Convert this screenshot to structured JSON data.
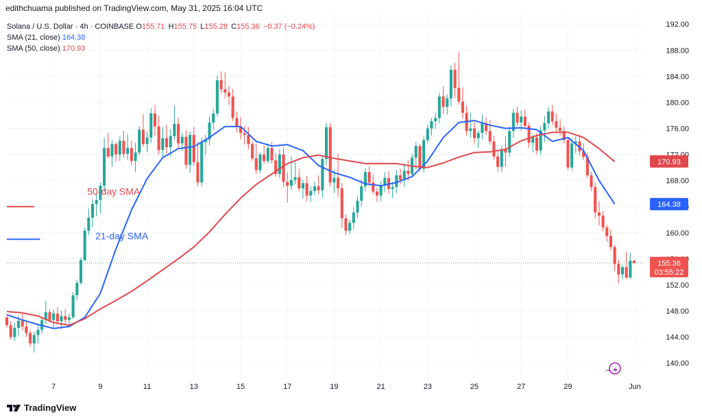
{
  "publisher": "edithchuama published on TradingView.com, May 31, 2025 16:04 UTC",
  "legend": {
    "symbol": "Solana / U.S. Dollar · 4h · COINBASE",
    "ohlc": [
      {
        "label": "O",
        "value": "155.71"
      },
      {
        "label": "H",
        "value": "155.75"
      },
      {
        "label": "L",
        "value": "155.28"
      },
      {
        "label": "C",
        "value": "155.36"
      }
    ],
    "change": "−0.37 (−0.24%)",
    "sma21": {
      "name": "SMA (21, close)",
      "value": "164.38"
    },
    "sma50": {
      "name": "SMA (50, close)",
      "value": "170.93"
    }
  },
  "footer": {
    "brand": "TradingView"
  },
  "colors": {
    "up": "#26a69a",
    "down": "#ef5350",
    "sma21": "#2962ff",
    "sma50": "#e0474c",
    "grid": "#f0f3fa"
  },
  "chart_data": {
    "type": "candlestick",
    "title": "Solana / U.S. Dollar · 4h · COINBASE",
    "y_ticks": [
      140,
      144,
      148,
      152,
      156,
      160,
      164,
      168,
      172,
      176,
      180,
      184,
      188,
      192
    ],
    "y_tick_labels": [
      "140.00",
      "144.00",
      "148.00",
      "152.00",
      "156.00",
      "160.00",
      "164.00",
      "168.00",
      "172.00",
      "176.00",
      "180.00",
      "184.00",
      "188.00",
      "192.00"
    ],
    "ylim": [
      137.6,
      193.6
    ],
    "x_range": [
      0,
      158
    ],
    "x_ticks": [
      {
        "x": 12,
        "label": "7"
      },
      {
        "x": 24,
        "label": "9"
      },
      {
        "x": 36,
        "label": "11"
      },
      {
        "x": 48,
        "label": "13"
      },
      {
        "x": 60,
        "label": "15"
      },
      {
        "x": 72,
        "label": "17"
      },
      {
        "x": 84,
        "label": "19"
      },
      {
        "x": 96,
        "label": "21"
      },
      {
        "x": 108,
        "label": "23"
      },
      {
        "x": 120,
        "label": "25"
      },
      {
        "x": 132,
        "label": "27"
      },
      {
        "x": 144,
        "label": "29"
      },
      {
        "x": 160,
        "label": "Jun"
      }
    ],
    "candles": [
      [
        147.0,
        147.4,
        145.4,
        145.8
      ],
      [
        145.8,
        146.4,
        143.6,
        144.0
      ],
      [
        144.0,
        146.2,
        143.4,
        145.4
      ],
      [
        145.4,
        147.3,
        144.2,
        146.5
      ],
      [
        146.5,
        147.5,
        145.0,
        145.6
      ],
      [
        145.6,
        146.5,
        144.0,
        144.6
      ],
      [
        144.6,
        145.1,
        142.5,
        143.0
      ],
      [
        143.0,
        144.8,
        141.6,
        144.3
      ],
      [
        144.3,
        145.8,
        143.0,
        145.1
      ],
      [
        145.1,
        147.1,
        144.5,
        146.6
      ],
      [
        146.6,
        149.5,
        146.0,
        147.8
      ],
      [
        147.8,
        148.3,
        146.2,
        146.6
      ],
      [
        146.6,
        148.2,
        145.4,
        147.6
      ],
      [
        147.6,
        148.6,
        146.1,
        146.4
      ],
      [
        146.4,
        148.0,
        145.2,
        147.2
      ],
      [
        147.2,
        148.3,
        146.0,
        146.6
      ],
      [
        146.6,
        147.6,
        145.6,
        147.0
      ],
      [
        147.0,
        150.9,
        146.8,
        150.4
      ],
      [
        150.4,
        152.8,
        149.7,
        152.3
      ],
      [
        152.3,
        156.2,
        152.0,
        155.8
      ],
      [
        155.8,
        160.8,
        155.6,
        160.3
      ],
      [
        160.3,
        163.7,
        159.6,
        162.3
      ],
      [
        162.3,
        165.1,
        160.9,
        164.4
      ],
      [
        164.4,
        166.1,
        162.5,
        165.0
      ],
      [
        165.0,
        167.7,
        163.0,
        167.2
      ],
      [
        167.2,
        174.6,
        166.3,
        173.0
      ],
      [
        173.0,
        175.3,
        171.4,
        171.7
      ],
      [
        171.7,
        174.2,
        170.1,
        173.6
      ],
      [
        173.6,
        173.9,
        170.9,
        172.0
      ],
      [
        172.0,
        174.8,
        171.0,
        174.1
      ],
      [
        174.1,
        175.6,
        171.5,
        172.1
      ],
      [
        172.1,
        175.1,
        171.2,
        173.0
      ],
      [
        173.0,
        174.1,
        170.3,
        171.0
      ],
      [
        171.0,
        173.8,
        169.3,
        172.3
      ],
      [
        172.3,
        176.3,
        171.8,
        175.8
      ],
      [
        175.8,
        178.2,
        173.2,
        173.6
      ],
      [
        173.6,
        175.5,
        172.4,
        174.6
      ],
      [
        174.6,
        179.1,
        173.8,
        178.3
      ],
      [
        178.3,
        179.6,
        174.9,
        176.3
      ],
      [
        176.3,
        177.9,
        172.0,
        172.7
      ],
      [
        172.7,
        176.2,
        171.6,
        174.5
      ],
      [
        174.5,
        176.5,
        172.1,
        173.1
      ],
      [
        173.1,
        175.9,
        171.7,
        174.8
      ],
      [
        174.8,
        179.5,
        174.2,
        176.7
      ],
      [
        176.7,
        177.6,
        173.0,
        173.7
      ],
      [
        173.7,
        175.3,
        172.6,
        174.7
      ],
      [
        174.7,
        175.8,
        169.8,
        170.4
      ],
      [
        170.4,
        175.5,
        169.2,
        175.0
      ],
      [
        175.0,
        176.2,
        170.3,
        170.8
      ],
      [
        170.8,
        174.0,
        167.1,
        167.7
      ],
      [
        167.7,
        174.6,
        167.1,
        173.9
      ],
      [
        173.9,
        175.0,
        171.9,
        174.3
      ],
      [
        174.3,
        177.8,
        173.4,
        176.9
      ],
      [
        176.9,
        179.0,
        175.8,
        178.3
      ],
      [
        178.3,
        184.1,
        177.8,
        183.4
      ],
      [
        183.4,
        184.8,
        181.4,
        182.0
      ],
      [
        182.0,
        184.6,
        180.6,
        181.5
      ],
      [
        181.5,
        182.5,
        179.6,
        180.9
      ],
      [
        180.9,
        182.1,
        177.1,
        177.6
      ],
      [
        177.6,
        178.6,
        175.4,
        176.2
      ],
      [
        176.2,
        177.7,
        174.3,
        175.3
      ],
      [
        175.3,
        176.4,
        173.5,
        175.0
      ],
      [
        175.0,
        176.2,
        172.8,
        173.6
      ],
      [
        173.6,
        174.0,
        171.0,
        171.4
      ],
      [
        171.4,
        173.7,
        169.0,
        169.6
      ],
      [
        169.6,
        172.3,
        169.1,
        172.0
      ],
      [
        172.0,
        173.4,
        170.6,
        171.0
      ],
      [
        171.0,
        173.7,
        170.6,
        173.0
      ],
      [
        173.0,
        173.9,
        170.6,
        171.1
      ],
      [
        171.1,
        172.2,
        168.6,
        169.0
      ],
      [
        169.0,
        172.8,
        168.4,
        172.0
      ],
      [
        172.0,
        173.1,
        167.0,
        167.8
      ],
      [
        167.8,
        169.3,
        164.6,
        167.2
      ],
      [
        167.2,
        171.7,
        166.6,
        168.1
      ],
      [
        168.1,
        170.9,
        167.4,
        168.5
      ],
      [
        168.5,
        169.8,
        166.3,
        166.8
      ],
      [
        166.8,
        168.1,
        165.2,
        167.6
      ],
      [
        167.6,
        168.7,
        164.8,
        165.7
      ],
      [
        165.7,
        167.1,
        164.7,
        166.4
      ],
      [
        166.4,
        167.8,
        165.8,
        167.1
      ],
      [
        167.1,
        168.8,
        165.9,
        166.5
      ],
      [
        166.5,
        171.7,
        165.4,
        171.3
      ],
      [
        171.3,
        176.8,
        170.3,
        176.2
      ],
      [
        176.2,
        176.8,
        167.1,
        167.7
      ],
      [
        167.7,
        169.6,
        166.1,
        168.4
      ],
      [
        168.4,
        172.1,
        165.5,
        166.8
      ],
      [
        166.8,
        167.6,
        160.8,
        162.2
      ],
      [
        162.2,
        162.8,
        159.6,
        160.3
      ],
      [
        160.3,
        162.0,
        159.8,
        161.5
      ],
      [
        161.5,
        163.9,
        160.5,
        163.1
      ],
      [
        163.1,
        165.6,
        162.2,
        164.9
      ],
      [
        164.9,
        168.2,
        164.0,
        167.1
      ],
      [
        167.1,
        169.8,
        166.3,
        169.3
      ],
      [
        169.3,
        170.2,
        167.1,
        167.7
      ],
      [
        167.7,
        168.9,
        165.9,
        166.3
      ],
      [
        166.3,
        166.9,
        164.7,
        165.7
      ],
      [
        165.7,
        167.9,
        164.8,
        167.2
      ],
      [
        167.2,
        169.3,
        166.2,
        168.4
      ],
      [
        168.4,
        169.5,
        166.0,
        166.7
      ],
      [
        166.7,
        167.8,
        165.3,
        167.0
      ],
      [
        167.0,
        169.6,
        166.1,
        168.8
      ],
      [
        168.8,
        169.8,
        167.4,
        168.1
      ],
      [
        168.1,
        170.6,
        167.0,
        169.5
      ],
      [
        169.5,
        171.1,
        168.0,
        169.0
      ],
      [
        169.0,
        172.1,
        168.5,
        171.5
      ],
      [
        171.5,
        173.9,
        169.7,
        173.3
      ],
      [
        173.3,
        173.6,
        169.4,
        169.8
      ],
      [
        169.8,
        174.8,
        169.2,
        174.2
      ],
      [
        174.2,
        176.6,
        173.8,
        176.0
      ],
      [
        176.0,
        177.6,
        174.9,
        177.1
      ],
      [
        177.1,
        178.4,
        175.9,
        177.6
      ],
      [
        177.6,
        181.5,
        176.8,
        180.9
      ],
      [
        180.9,
        182.5,
        178.2,
        179.3
      ],
      [
        179.3,
        181.2,
        178.1,
        180.6
      ],
      [
        180.6,
        185.7,
        179.4,
        185.0
      ],
      [
        185.0,
        186.1,
        180.7,
        182.2
      ],
      [
        182.2,
        187.7,
        179.6,
        180.1
      ],
      [
        180.1,
        182.3,
        177.5,
        178.4
      ],
      [
        178.4,
        179.5,
        174.9,
        175.6
      ],
      [
        175.6,
        178.4,
        174.6,
        176.0
      ],
      [
        176.0,
        177.0,
        173.7,
        174.5
      ],
      [
        174.5,
        175.7,
        173.0,
        175.3
      ],
      [
        175.3,
        178.1,
        174.3,
        176.8
      ],
      [
        176.8,
        177.7,
        175.0,
        175.6
      ],
      [
        175.6,
        177.3,
        173.5,
        174.0
      ],
      [
        174.0,
        174.9,
        171.2,
        171.7
      ],
      [
        171.7,
        172.6,
        169.4,
        170.1
      ],
      [
        170.1,
        173.4,
        169.3,
        172.8
      ],
      [
        172.8,
        174.8,
        170.1,
        172.3
      ],
      [
        172.3,
        176.3,
        171.6,
        175.6
      ],
      [
        175.6,
        179.0,
        174.5,
        178.4
      ],
      [
        178.4,
        179.3,
        176.4,
        176.9
      ],
      [
        176.9,
        178.8,
        175.6,
        177.8
      ],
      [
        177.8,
        178.9,
        175.9,
        176.4
      ],
      [
        176.4,
        176.9,
        173.0,
        173.8
      ],
      [
        173.8,
        175.1,
        172.3,
        174.6
      ],
      [
        174.6,
        175.3,
        172.0,
        172.6
      ],
      [
        172.6,
        176.4,
        171.9,
        175.7
      ],
      [
        175.7,
        177.9,
        173.9,
        176.8
      ],
      [
        176.8,
        179.3,
        176.0,
        178.6
      ],
      [
        178.6,
        179.6,
        176.5,
        177.1
      ],
      [
        177.1,
        178.3,
        175.5,
        176.1
      ],
      [
        176.1,
        177.4,
        174.9,
        175.6
      ],
      [
        175.6,
        176.3,
        173.7,
        174.2
      ],
      [
        174.2,
        174.6,
        169.6,
        170.0
      ],
      [
        170.0,
        174.5,
        169.5,
        173.7
      ],
      [
        173.7,
        174.8,
        172.2,
        174.0
      ],
      [
        174.0,
        175.0,
        171.8,
        172.5
      ],
      [
        172.5,
        173.7,
        171.1,
        171.6
      ],
      [
        171.6,
        172.3,
        168.4,
        168.8
      ],
      [
        168.8,
        169.3,
        166.4,
        167.0
      ],
      [
        167.0,
        167.7,
        162.2,
        163.1
      ],
      [
        163.1,
        164.8,
        161.1,
        162.6
      ],
      [
        162.6,
        163.3,
        160.2,
        160.8
      ],
      [
        160.8,
        161.2,
        158.6,
        159.5
      ],
      [
        159.5,
        160.5,
        157.2,
        157.8
      ],
      [
        157.8,
        158.1,
        154.1,
        155.2
      ],
      [
        155.2,
        155.8,
        152.2,
        153.6
      ],
      [
        153.6,
        155.1,
        152.8,
        154.7
      ],
      [
        154.7,
        157.1,
        152.9,
        153.1
      ],
      [
        153.1,
        156.9,
        153.0,
        155.7
      ],
      [
        155.71,
        155.75,
        155.28,
        155.36
      ]
    ],
    "series": [
      {
        "name": "SMA (21, close)",
        "color": "#2962ff",
        "x": [
          0,
          4,
          8,
          12,
          16,
          20,
          24,
          28,
          32,
          36,
          40,
          44,
          48,
          52,
          56,
          60,
          64,
          68,
          72,
          76,
          80,
          84,
          88,
          92,
          96,
          100,
          104,
          108,
          112,
          116,
          120,
          124,
          128,
          132,
          136,
          140,
          144,
          148,
          152,
          156
        ],
        "y": [
          147.4,
          146.6,
          145.9,
          145.3,
          145.6,
          147.0,
          150.7,
          157.5,
          163.5,
          168.3,
          171.5,
          172.9,
          173.2,
          174.6,
          176.3,
          176.3,
          174.0,
          173.3,
          173.5,
          172.6,
          170.3,
          169.2,
          168.5,
          167.5,
          167.2,
          167.7,
          168.6,
          171.0,
          174.6,
          176.9,
          177.2,
          176.5,
          176.0,
          176.1,
          175.8,
          174.0,
          174.6,
          172.6,
          168.0,
          164.4
        ]
      },
      {
        "name": "SMA (50, close)",
        "color": "#e0474c",
        "x": [
          0,
          4,
          8,
          12,
          16,
          20,
          24,
          28,
          32,
          36,
          40,
          44,
          48,
          52,
          56,
          60,
          64,
          68,
          72,
          76,
          80,
          84,
          88,
          92,
          96,
          100,
          104,
          108,
          112,
          116,
          120,
          124,
          128,
          132,
          136,
          140,
          144,
          148,
          152,
          156
        ],
        "y": [
          147.9,
          147.7,
          147.2,
          146.2,
          145.8,
          146.8,
          148.3,
          149.6,
          151.0,
          152.6,
          154.3,
          156.0,
          157.8,
          160.1,
          162.8,
          165.3,
          167.4,
          169.0,
          170.6,
          171.5,
          171.9,
          171.4,
          171.0,
          170.6,
          170.6,
          170.6,
          170.2,
          170.0,
          170.7,
          171.6,
          172.3,
          172.4,
          172.8,
          174.1,
          174.9,
          175.4,
          175.4,
          174.6,
          172.9,
          170.9
        ]
      }
    ],
    "price_labels": [
      {
        "value": 170.93,
        "text": "170.93",
        "bg": "#e0474c"
      },
      {
        "value": 164.38,
        "text": "164.38",
        "bg": "#2962ff"
      },
      {
        "value": 155.36,
        "text": "155.36",
        "sub": "03:55:22",
        "bg": "#ef5350"
      }
    ],
    "annotations": [
      {
        "text": "50-day SMA",
        "color": "#e0474c",
        "x": 27.4,
        "y": 165.8
      },
      {
        "text": "21-day SMA",
        "color": "#2962ff",
        "x": 29.5,
        "y": 159.0
      }
    ],
    "left_marks": [
      {
        "color": "#e0474c",
        "y": 164.0,
        "x": [
          0,
          7
        ]
      },
      {
        "color": "#2962ff",
        "y": 159.0,
        "x": [
          0,
          8.5
        ]
      }
    ]
  }
}
